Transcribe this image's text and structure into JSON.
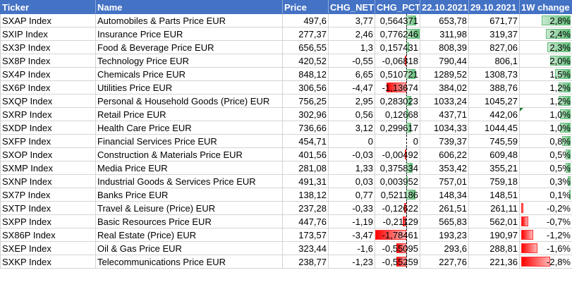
{
  "headers": [
    "Ticker",
    "Name",
    "Price",
    "CHG_NET",
    "CHG_PCT",
    "22.10.2021",
    "29.10.2021",
    "1W change"
  ],
  "rows": [
    {
      "ticker": "SXAP Index",
      "name": "Automobiles & Parts Price EUR",
      "price": "497,6",
      "chg_net": "3,77",
      "chg_pct": "0,564371",
      "d1": "653,78",
      "d2": "671,77",
      "w1": "2,8%",
      "pct_val": 0.564371,
      "w1_val": 2.8
    },
    {
      "ticker": "SXIP Index",
      "name": "Insurance Price EUR",
      "price": "277,37",
      "chg_net": "2,46",
      "chg_pct": "0,776246",
      "d1": "311,98",
      "d2": "319,37",
      "w1": "2,4%",
      "pct_val": 0.776246,
      "w1_val": 2.4
    },
    {
      "ticker": "SX3P Index",
      "name": "Food & Beverage Price EUR",
      "price": "656,55",
      "chg_net": "1,3",
      "chg_pct": "0,157431",
      "d1": "808,39",
      "d2": "827,06",
      "w1": "2,3%",
      "pct_val": 0.157431,
      "w1_val": 2.3
    },
    {
      "ticker": "SX8P Index",
      "name": "Technology Price EUR",
      "price": "420,52",
      "chg_net": "-0,55",
      "chg_pct": "-0,06818",
      "d1": "790,44",
      "d2": "806,1",
      "w1": "2,0%",
      "pct_val": -0.06818,
      "w1_val": 2.0
    },
    {
      "ticker": "SX4P Index",
      "name": "Chemicals Price EUR",
      "price": "848,12",
      "chg_net": "6,65",
      "chg_pct": "0,510721",
      "d1": "1289,52",
      "d2": "1308,73",
      "w1": "1,5%",
      "pct_val": 0.510721,
      "w1_val": 1.5
    },
    {
      "ticker": "SX6P Index",
      "name": "Utilities Price EUR",
      "price": "306,56",
      "chg_net": "-4,47",
      "chg_pct": "-1,13674",
      "d1": "384,02",
      "d2": "388,76",
      "w1": "1,2%",
      "pct_val": -1.13674,
      "w1_val": 1.2
    },
    {
      "ticker": "SXQP Index",
      "name": "Personal & Household Goods (Price) EUR",
      "price": "756,25",
      "chg_net": "2,95",
      "chg_pct": "0,283023",
      "d1": "1033,24",
      "d2": "1045,27",
      "w1": "1,2%",
      "pct_val": 0.283023,
      "w1_val": 1.2
    },
    {
      "ticker": "SXRP Index",
      "name": "Retail Price EUR",
      "price": "302,96",
      "chg_net": "0,56",
      "chg_pct": "0,12668",
      "d1": "437,71",
      "d2": "442,06",
      "w1": "1,0%",
      "pct_val": 0.12668,
      "w1_val": 1.0,
      "flag": true
    },
    {
      "ticker": "SXDP Index",
      "name": "Health Care Price EUR",
      "price": "736,66",
      "chg_net": "3,12",
      "chg_pct": "0,299617",
      "d1": "1034,33",
      "d2": "1044,45",
      "w1": "1,0%",
      "pct_val": 0.299617,
      "w1_val": 1.0
    },
    {
      "ticker": "SXFP Index",
      "name": "Financial Services Price EUR",
      "price": "454,71",
      "chg_net": "0",
      "chg_pct": "0",
      "d1": "739,37",
      "d2": "745,59",
      "w1": "0,8%",
      "pct_val": 0,
      "w1_val": 0.8
    },
    {
      "ticker": "SXOP Index",
      "name": "Construction & Materials Price EUR",
      "price": "401,56",
      "chg_net": "-0,03",
      "chg_pct": "-0,00492",
      "d1": "606,22",
      "d2": "609,48",
      "w1": "0,5%",
      "pct_val": -0.00492,
      "w1_val": 0.5
    },
    {
      "ticker": "SXMP Index",
      "name": "Media Price EUR",
      "price": "281,08",
      "chg_net": "1,33",
      "chg_pct": "0,375834",
      "d1": "353,42",
      "d2": "355,21",
      "w1": "0,5%",
      "pct_val": 0.375834,
      "w1_val": 0.5
    },
    {
      "ticker": "SXNP Index",
      "name": "Industrial Goods & Services Price EUR",
      "price": "491,31",
      "chg_net": "0,03",
      "chg_pct": "0,003952",
      "d1": "757,01",
      "d2": "759,18",
      "w1": "0,3%",
      "pct_val": 0.003952,
      "w1_val": 0.3
    },
    {
      "ticker": "SX7P Index",
      "name": "Banks Price EUR",
      "price": "138,12",
      "chg_net": "0,77",
      "chg_pct": "0,521186",
      "d1": "148,34",
      "d2": "148,51",
      "w1": "0,1%",
      "pct_val": 0.521186,
      "w1_val": 0.1
    },
    {
      "ticker": "SXTP Index",
      "name": "Travel & Leisure (Price) EUR",
      "price": "237,28",
      "chg_net": "-0,33",
      "chg_pct": "-0,12622",
      "d1": "261,51",
      "d2": "261,11",
      "w1": "-0,2%",
      "pct_val": -0.12622,
      "w1_val": -0.2
    },
    {
      "ticker": "SXPP Index",
      "name": "Basic Resources Price EUR",
      "price": "447,76",
      "chg_net": "-1,19",
      "chg_pct": "-0,21129",
      "d1": "565,83",
      "d2": "562,01",
      "w1": "-0,7%",
      "pct_val": -0.21129,
      "w1_val": -0.7
    },
    {
      "ticker": "SX86P Index",
      "name": "Real Estate (Price) EUR",
      "price": "173,57",
      "chg_net": "-3,47",
      "chg_pct": "-1,78461",
      "d1": "193,23",
      "d2": "190,97",
      "w1": "-1,2%",
      "pct_val": -1.78461,
      "w1_val": -1.2
    },
    {
      "ticker": "SXEP Index",
      "name": "Oil & Gas Price EUR",
      "price": "323,44",
      "chg_net": "-1,6",
      "chg_pct": "-0,55095",
      "d1": "293,6",
      "d2": "288,81",
      "w1": "-1,6%",
      "pct_val": -0.55095,
      "w1_val": -1.6
    },
    {
      "ticker": "SXKP Index",
      "name": "Telecommunications Price EUR",
      "price": "238,77",
      "chg_net": "-1,23",
      "chg_pct": "-0,55259",
      "d1": "227,76",
      "d2": "221,36",
      "w1": "-2,8%",
      "pct_val": -0.55259,
      "w1_val": -2.8
    }
  ],
  "colors": {
    "header_bg": "#4472c4",
    "positive_bar": "#63be7b",
    "negative_bar": "#ff0000",
    "grid": "#d4d4d4"
  }
}
